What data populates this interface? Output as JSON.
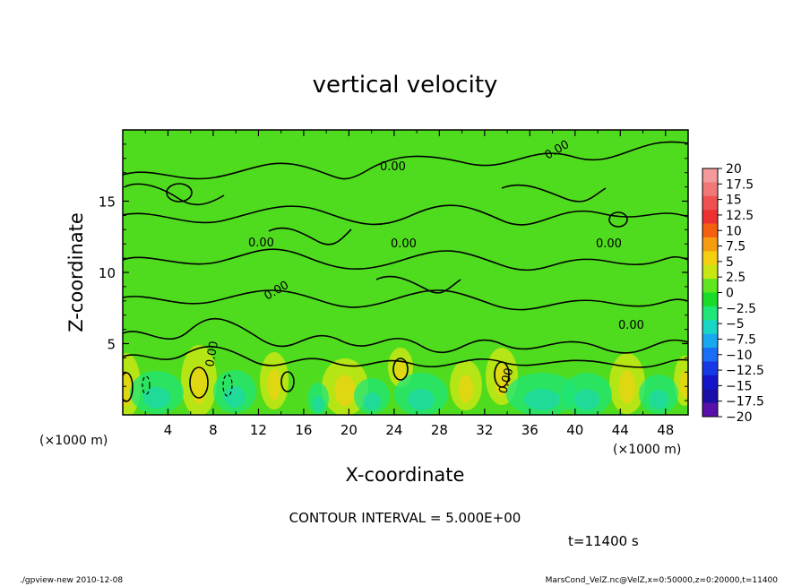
{
  "chart_data": {
    "type": "heatmap",
    "title": "vertical velocity",
    "xlabel": "X-coordinate",
    "ylabel": "Z-coordinate",
    "x_unit": "(×1000 m)",
    "y_unit": "(×1000 m)",
    "xlim": [
      0,
      50
    ],
    "ylim": [
      0,
      20
    ],
    "x_ticks": [
      "4",
      "8",
      "12",
      "16",
      "20",
      "24",
      "28",
      "32",
      "36",
      "40",
      "44",
      "48"
    ],
    "y_ticks": [
      "5",
      "10",
      "15"
    ],
    "colorbar": {
      "labels": [
        "20",
        "17.5",
        "15",
        "12.5",
        "10",
        "7.5",
        "5",
        "2.5",
        "0",
        "−2.5",
        "−5",
        "−7.5",
        "−10",
        "−12.5",
        "−15",
        "−17.5",
        "−20"
      ],
      "colors": [
        "#f49a9a",
        "#f27878",
        "#f05050",
        "#ee3030",
        "#f56010",
        "#f59c10",
        "#f5d010",
        "#c8e614",
        "#5fe620",
        "#18dc28",
        "#1ee678",
        "#18d6c4",
        "#18a8f0",
        "#1a6ef5",
        "#1638e6",
        "#1414c8",
        "#1a10a8",
        "#5a10a8"
      ]
    },
    "contour_labels": [
      "0.00",
      "0.00",
      "0.00",
      "0.00",
      "0.00",
      "0.00",
      "0.00",
      "0.00",
      "0.00"
    ],
    "contour_interval": "CONTOUR INTERVAL = 5.000E+00",
    "time_label": "t=11400 s"
  },
  "footer": {
    "left": "./gpview-new   2010-12-08",
    "right": "MarsCond_VelZ.nc@VelZ,x=0:50000,z=0:20000,t=11400"
  }
}
